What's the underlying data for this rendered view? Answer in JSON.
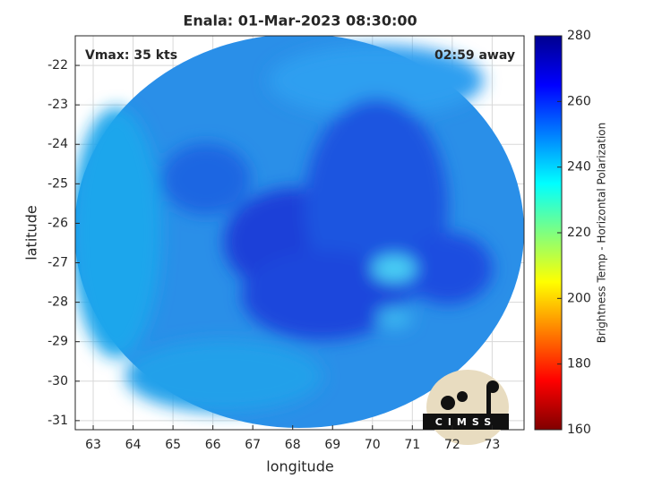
{
  "chart_data": {
    "type": "heatmap",
    "title": "Enala: 01-Mar-2023 08:30:00",
    "xlabel": "longitude",
    "ylabel": "latitude",
    "annotations": [
      "Vmax: 35 kts",
      "02:59 away"
    ],
    "logo": "CIMSS",
    "xlim": [
      62.55,
      73.8
    ],
    "xticks": [
      63,
      64,
      65,
      66,
      67,
      68,
      69,
      70,
      71,
      72,
      73
    ],
    "ylim": [
      -31.23,
      -21.25
    ],
    "yticks": [
      -31,
      -30,
      -29,
      -28,
      -27,
      -26,
      -25,
      -24,
      -23,
      -22
    ],
    "grid": true,
    "colorbar": {
      "label": "Brightness Temp - Horizontal Polarization",
      "lim": [
        160,
        280
      ],
      "ticks": [
        160,
        180,
        200,
        220,
        240,
        260,
        280
      ],
      "colormap": "jet"
    }
  }
}
